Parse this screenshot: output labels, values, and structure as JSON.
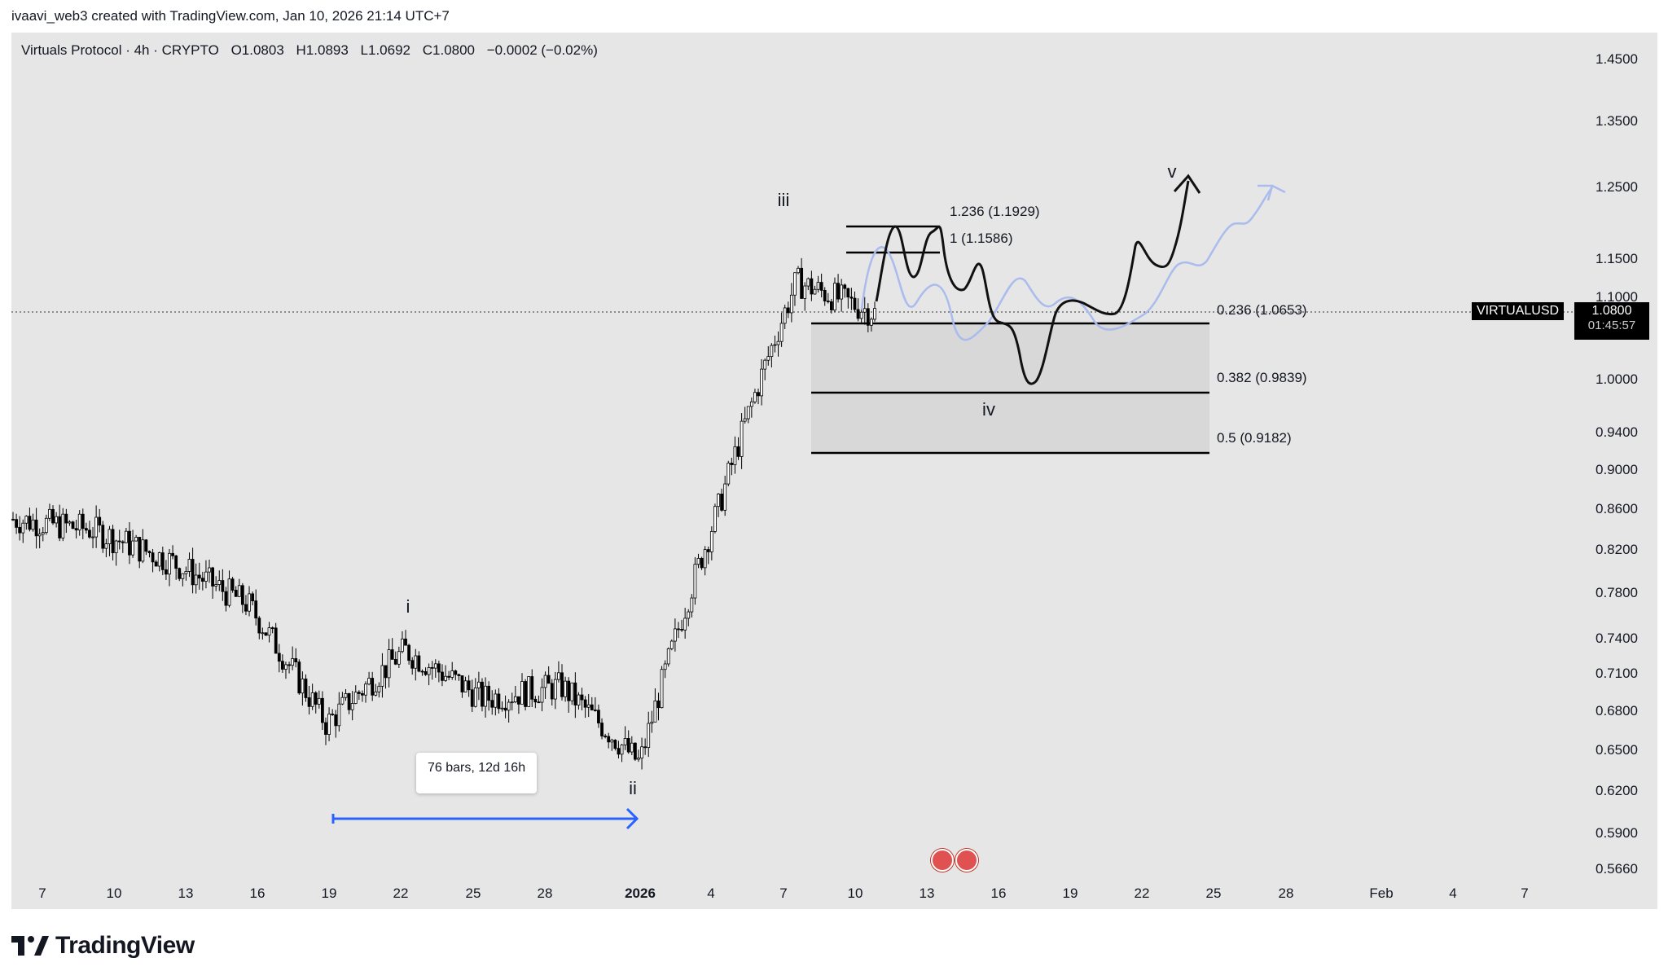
{
  "header": {
    "attribution": "ivaavi_web3 created with TradingView.com, Jan 10, 2026 21:14 UTC+7"
  },
  "legend": {
    "symbol": "Virtuals Protocol · 4h · CRYPTO",
    "open": "O1.0803",
    "high": "H1.0893",
    "low": "L1.0692",
    "close": "C1.0800",
    "change": "−0.0002 (−0.02%)"
  },
  "price_scale": {
    "ticks": [
      "1.4500",
      "1.3500",
      "1.2500",
      "1.1500",
      "1.1000",
      "1.0000",
      "0.9400",
      "0.9000",
      "0.8600",
      "0.8200",
      "0.7800",
      "0.7400",
      "0.7100",
      "0.6800",
      "0.6500",
      "0.6200",
      "0.5900",
      "0.5660"
    ],
    "symbol_label": "VIRTUALUSD",
    "last_price": "1.0800",
    "countdown": "01:45:57"
  },
  "time_scale": {
    "ticks": [
      "7",
      "10",
      "13",
      "16",
      "19",
      "22",
      "25",
      "28",
      "2026",
      "4",
      "7",
      "10",
      "13",
      "16",
      "19",
      "22",
      "25",
      "28",
      "Feb",
      "4",
      "7"
    ]
  },
  "annotations": {
    "wave_i": "i",
    "wave_ii": "ii",
    "wave_iii": "iii",
    "wave_iv": "iv",
    "wave_v": "v",
    "range_note": "76 bars, 12d 16h",
    "fib_1236": "1.236 (1.1929)",
    "fib_1": "1 (1.1586)",
    "fib_0236": "0.236 (1.0653)",
    "fib_0382": "0.382 (0.9839)",
    "fib_05": "0.5 (0.9182)"
  },
  "branding": {
    "logo_text": "TradingView"
  },
  "colors": {
    "background": "#e6e6e6",
    "candle": "#000000",
    "arrow": "#2962ff",
    "alt_path": "#aabbee",
    "zone": "#d8d8d8"
  },
  "chart_data": {
    "type": "candlestick",
    "title": "Virtuals Protocol · 4h · CRYPTO",
    "interval": "4h",
    "series": [
      {
        "name": "price",
        "dates": [
          "Dec 7",
          "Dec 10",
          "Dec 13",
          "Dec 16",
          "Dec 19",
          "Dec 22",
          "Dec 25",
          "Dec 28",
          "Jan 1",
          "Jan 4",
          "Jan 7",
          "Jan 10"
        ],
        "close": [
          0.85,
          0.84,
          0.81,
          0.77,
          0.67,
          0.73,
          0.69,
          0.7,
          0.64,
          0.86,
          1.12,
          1.08
        ]
      }
    ],
    "fib_levels": [
      {
        "ratio": 1.236,
        "price": 1.1929
      },
      {
        "ratio": 1,
        "price": 1.1586
      },
      {
        "ratio": 0.236,
        "price": 1.0653
      },
      {
        "ratio": 0.382,
        "price": 0.9839
      },
      {
        "ratio": 0.5,
        "price": 0.9182
      }
    ],
    "last_price": 1.08,
    "scale": "log",
    "ylim": [
      0.566,
      1.45
    ]
  }
}
